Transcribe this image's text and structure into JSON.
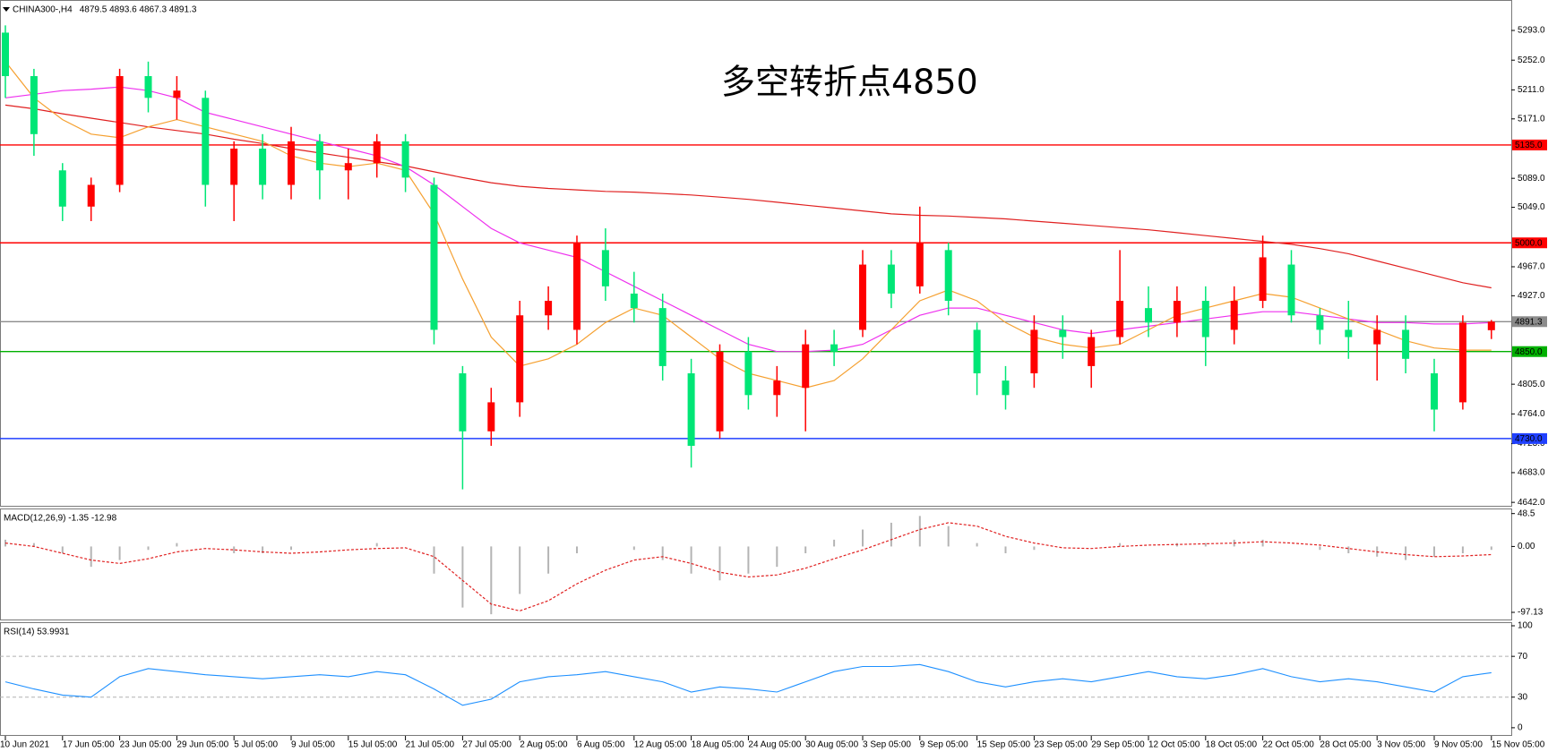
{
  "chart_data": [
    {
      "type": "candlestick",
      "title": "CHINA300-,H4",
      "subtitle": "4879.5 4893.6 4867.3 4891.3",
      "annotation": "多空转折点4850",
      "categories": [
        "10 Jun 2021",
        null,
        "17 Jun 05:00",
        null,
        "23 Jun 05:00",
        null,
        "29 Jun 05:00",
        null,
        "5 Jul 05:00",
        null,
        "9 Jul 05:00",
        null,
        "15 Jul 05:00",
        null,
        "21 Jul 05:00",
        null,
        "27 Jul 05:00",
        null,
        "2 Aug 05:00",
        null,
        "6 Aug 05:00",
        null,
        "12 Aug 05:00",
        null,
        "18 Aug 05:00",
        null,
        "24 Aug 05:00",
        null,
        "30 Aug 05:00",
        null,
        "3 Sep 05:00",
        null,
        "9 Sep 05:00",
        null,
        "15 Sep 05:00",
        null,
        "23 Sep 05:00",
        null,
        "29 Sep 05:00",
        null,
        "12 Oct 05:00",
        null,
        "18 Oct 05:00",
        null,
        "22 Oct 05:00",
        null,
        "28 Oct 05:00",
        null,
        "3 Nov 05:00",
        null,
        "9 Nov 05:00",
        null,
        "15 Nov 05:00"
      ],
      "open": [
        5290,
        5230,
        5100,
        5050,
        5080,
        5230,
        5200,
        5200,
        5080,
        5130,
        5080,
        5140,
        5100,
        5110,
        5140,
        5080,
        4820,
        4740,
        4780,
        4900,
        4880,
        4990,
        4930,
        4910,
        4820,
        4740,
        4850,
        4790,
        4800,
        4860,
        4880,
        4970,
        4940,
        4990,
        4880,
        4810,
        4820,
        4880,
        4830,
        4870,
        4910,
        4890,
        4920,
        4880,
        4920,
        4970,
        4900,
        4880,
        4860,
        4880,
        4820,
        4780,
        4879.5
      ],
      "high": [
        5300,
        5240,
        5110,
        5090,
        5240,
        5250,
        5230,
        5210,
        5140,
        5150,
        5160,
        5150,
        5130,
        5150,
        5150,
        5090,
        4830,
        4800,
        4920,
        4940,
        5010,
        5020,
        4960,
        4930,
        4840,
        4860,
        4870,
        4830,
        4880,
        4880,
        4990,
        4990,
        5050,
        5000,
        4890,
        4830,
        4900,
        4900,
        4880,
        4990,
        4940,
        4940,
        4940,
        4940,
        5010,
        4990,
        4910,
        4920,
        4900,
        4900,
        4840,
        4900,
        4893.6
      ],
      "low": [
        5200,
        5120,
        5030,
        5030,
        5070,
        5180,
        5170,
        5050,
        5030,
        5060,
        5060,
        5060,
        5060,
        5090,
        5070,
        4860,
        4660,
        4720,
        4760,
        4880,
        4860,
        4920,
        4890,
        4810,
        4690,
        4730,
        4770,
        4760,
        4740,
        4830,
        4870,
        4910,
        4930,
        4900,
        4790,
        4770,
        4800,
        4840,
        4800,
        4860,
        4870,
        4870,
        4830,
        4860,
        4910,
        4890,
        4860,
        4840,
        4810,
        4820,
        4740,
        4770,
        4867.3
      ],
      "close": [
        5230,
        5150,
        5050,
        5080,
        5230,
        5200,
        5210,
        5080,
        5130,
        5080,
        5140,
        5100,
        5110,
        5140,
        5090,
        4880,
        4740,
        4780,
        4900,
        4920,
        5000,
        4940,
        4910,
        4830,
        4720,
        4850,
        4790,
        4810,
        4860,
        4850,
        4970,
        4930,
        5000,
        4920,
        4820,
        4790,
        4880,
        4870,
        4870,
        4920,
        4890,
        4920,
        4870,
        4920,
        4980,
        4900,
        4880,
        4870,
        4880,
        4840,
        4770,
        4890,
        4891.3
      ],
      "up_color": "#ff0000",
      "down_color": "#00e676",
      "series": [
        {
          "color": "#e02020",
          "values": [
            5190,
            5185,
            5178,
            5172,
            5166,
            5160,
            5155,
            5150,
            5143,
            5137,
            5130,
            5124,
            5118,
            5112,
            5106,
            5098,
            5090,
            5083,
            5078,
            5075,
            5073,
            5071,
            5070,
            5068,
            5066,
            5063,
            5060,
            5056,
            5052,
            5048,
            5044,
            5040,
            5038,
            5037,
            5035,
            5033,
            5030,
            5027,
            5024,
            5021,
            5018,
            5014,
            5010,
            5006,
            5002,
            4998,
            4992,
            4985,
            4975,
            4965,
            4955,
            4945,
            4938
          ]
        },
        {
          "color": "#ee30ee",
          "values": [
            5200,
            5205,
            5210,
            5212,
            5215,
            5210,
            5200,
            5180,
            5170,
            5160,
            5150,
            5140,
            5130,
            5120,
            5105,
            5080,
            5050,
            5020,
            5000,
            4990,
            4980,
            4960,
            4940,
            4920,
            4900,
            4880,
            4860,
            4850,
            4850,
            4852,
            4860,
            4880,
            4900,
            4910,
            4910,
            4900,
            4890,
            4880,
            4875,
            4880,
            4885,
            4890,
            4895,
            4900,
            4905,
            4905,
            4900,
            4895,
            4890,
            4890,
            4888,
            4888,
            4890
          ]
        },
        {
          "color": "#f5a030",
          "values": [
            5250,
            5200,
            5170,
            5150,
            5145,
            5160,
            5170,
            5160,
            5150,
            5140,
            5120,
            5110,
            5105,
            5110,
            5100,
            5040,
            4950,
            4870,
            4830,
            4840,
            4860,
            4890,
            4910,
            4900,
            4870,
            4840,
            4820,
            4810,
            4800,
            4810,
            4840,
            4880,
            4920,
            4935,
            4920,
            4890,
            4870,
            4860,
            4855,
            4860,
            4880,
            4900,
            4910,
            4920,
            4930,
            4925,
            4910,
            4895,
            4880,
            4865,
            4855,
            4852,
            4852
          ]
        }
      ],
      "levels": [
        {
          "value": 5135,
          "label": "5135.0",
          "color": "#ff0000"
        },
        {
          "value": 5000,
          "label": "5000.0",
          "color": "#ff0000"
        },
        {
          "value": 4891.3,
          "label": "4891.3",
          "color": "#8c8c8c"
        },
        {
          "value": 4850,
          "label": "4850.0",
          "color": "#00b000"
        },
        {
          "value": 4730,
          "label": "4730.0",
          "color": "#2040ff"
        }
      ],
      "ylim": [
        4636,
        5335
      ],
      "yticks": [
        {
          "value": 5293,
          "label": "5293.0"
        },
        {
          "value": 5252,
          "label": "5252.0"
        },
        {
          "value": 5211,
          "label": "5211.0"
        },
        {
          "value": 5171,
          "label": "5171.0"
        },
        {
          "value": 5089,
          "label": "5089.0"
        },
        {
          "value": 5049,
          "label": "5049.0"
        },
        {
          "value": 4967,
          "label": "4967.0"
        },
        {
          "value": 4927,
          "label": "4927.0"
        },
        {
          "value": 4805,
          "label": "4805.0"
        },
        {
          "value": 4764,
          "label": "4764.0"
        },
        {
          "value": 4723,
          "label": "4723.0"
        },
        {
          "value": 4683,
          "label": "4683.0"
        },
        {
          "value": 4642,
          "label": "4642.0"
        }
      ]
    },
    {
      "type": "macd",
      "title": "MACD(12,26,9) -1.35 -12.98",
      "histogram": {
        "color": "#b4b4b4",
        "values": [
          10,
          5,
          -10,
          -30,
          -20,
          -5,
          5,
          0,
          -10,
          -10,
          -5,
          0,
          0,
          5,
          0,
          -40,
          -90,
          -100,
          -70,
          -40,
          -10,
          0,
          -5,
          -20,
          -40,
          -50,
          -40,
          -30,
          -10,
          10,
          25,
          35,
          45,
          30,
          5,
          -10,
          -5,
          0,
          0,
          5,
          0,
          5,
          5,
          10,
          10,
          0,
          -5,
          -10,
          -15,
          -20,
          -15,
          -10,
          -5
        ]
      },
      "signal": {
        "color": "#e02020",
        "values": [
          5,
          0,
          -10,
          -20,
          -25,
          -18,
          -8,
          -3,
          -5,
          -8,
          -10,
          -8,
          -5,
          -3,
          -2,
          -15,
          -50,
          -85,
          -95,
          -80,
          -55,
          -35,
          -20,
          -15,
          -25,
          -38,
          -45,
          -42,
          -32,
          -18,
          -5,
          10,
          25,
          35,
          30,
          15,
          5,
          -2,
          -3,
          0,
          2,
          3,
          4,
          5,
          7,
          5,
          2,
          -3,
          -8,
          -12,
          -15,
          -14,
          -12
        ]
      },
      "ylim": [
        -109,
        56
      ],
      "yticks": [
        48.5,
        {
          "value": 0,
          "label": "0.00"
        },
        -97.13
      ]
    },
    {
      "type": "line",
      "title": "RSI(14) 53.9931",
      "series": [
        {
          "color": "#1e90ff",
          "values": [
            45,
            38,
            32,
            30,
            50,
            58,
            55,
            52,
            50,
            48,
            50,
            52,
            50,
            55,
            52,
            38,
            22,
            28,
            45,
            50,
            52,
            55,
            50,
            45,
            35,
            40,
            38,
            35,
            45,
            55,
            60,
            60,
            62,
            55,
            45,
            40,
            45,
            48,
            45,
            50,
            55,
            50,
            48,
            52,
            58,
            50,
            45,
            48,
            45,
            40,
            35,
            50,
            54
          ]
        }
      ],
      "levels": [
        70,
        30
      ],
      "ylim": [
        -8,
        103.5
      ],
      "yticks": [
        100,
        70,
        30,
        0
      ]
    }
  ]
}
